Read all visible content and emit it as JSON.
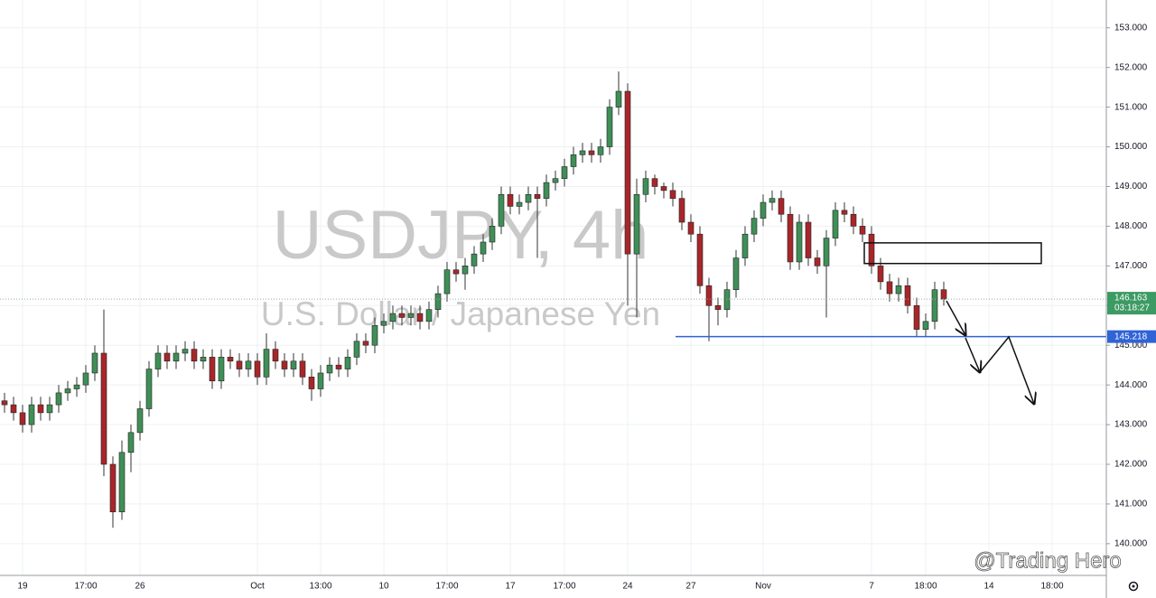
{
  "chart_data": {
    "type": "candlestick",
    "title": "USDJPY, 4h",
    "subtitle": "U.S. Dollar / Japanese Yen",
    "credit": "@Trading Hero",
    "countdown": "03:18:27",
    "level": 145.218,
    "zone": [
      147.06,
      147.58
    ],
    "up_color": "#3f8f57",
    "down_color": "#a8262a",
    "level_color": "#2f63d6",
    "last_color": "#3c9a63",
    "grid": true,
    "categories": [
      null,
      null,
      "19",
      null,
      null,
      null,
      null,
      null,
      null,
      "17:00",
      null,
      null,
      null,
      null,
      null,
      "26",
      null,
      null,
      null,
      null,
      null,
      null,
      null,
      null,
      null,
      null,
      null,
      null,
      "Oct",
      null,
      null,
      null,
      null,
      null,
      null,
      "13:00",
      null,
      null,
      null,
      null,
      null,
      null,
      "10",
      null,
      null,
      null,
      null,
      null,
      null,
      "17:00",
      null,
      null,
      null,
      null,
      null,
      null,
      "17",
      null,
      null,
      null,
      null,
      null,
      "17:00",
      null,
      null,
      null,
      null,
      null,
      null,
      "24",
      null,
      null,
      null,
      null,
      null,
      null,
      "27",
      null,
      null,
      null,
      null,
      null,
      null,
      null,
      "Nov",
      null,
      null,
      null,
      null,
      null,
      null,
      null,
      null,
      null,
      null,
      null,
      "7",
      null,
      null,
      null,
      null,
      null,
      "18:00",
      null,
      null,
      null,
      null,
      null,
      null,
      "14",
      null,
      null,
      null,
      null,
      null,
      null,
      "18:00"
    ],
    "open": [
      143.6,
      143.5,
      143.3,
      143.0,
      143.5,
      143.3,
      143.5,
      143.8,
      143.9,
      144.0,
      144.3,
      144.8,
      142.0,
      140.8,
      142.3,
      142.8,
      143.4,
      144.4,
      144.8,
      144.6,
      144.8,
      144.9,
      144.6,
      144.7,
      144.1,
      144.7,
      144.6,
      144.4,
      144.6,
      144.2,
      144.9,
      144.6,
      144.4,
      144.6,
      144.2,
      143.9,
      144.3,
      144.5,
      144.4,
      144.7,
      145.1,
      145.0,
      145.5,
      145.6,
      145.8,
      145.7,
      145.8,
      145.6,
      145.9,
      146.3,
      146.9,
      146.8,
      147.0,
      147.3,
      147.6,
      148.0,
      148.8,
      148.5,
      148.6,
      148.8,
      148.7,
      149.1,
      149.2,
      149.5,
      149.8,
      149.9,
      149.8,
      150.0,
      151.0,
      151.4,
      147.3,
      148.8,
      149.2,
      149.0,
      148.9,
      148.7,
      148.1,
      147.8,
      146.5,
      146.0,
      145.9,
      146.4,
      147.2,
      147.8,
      148.2,
      148.6,
      148.7,
      148.3,
      147.1,
      148.1,
      147.2,
      147.0,
      147.7,
      148.4,
      148.3,
      148.0,
      147.8,
      147.0,
      146.6,
      146.3,
      146.5,
      146.0,
      145.4,
      145.6,
      146.4,
      null,
      null,
      null,
      null,
      null,
      null,
      null,
      null,
      null,
      null,
      null,
      null
    ],
    "high": [
      143.8,
      143.7,
      143.5,
      143.7,
      143.7,
      143.7,
      144.0,
      144.1,
      144.2,
      144.5,
      145.0,
      145.9,
      142.2,
      142.6,
      143.0,
      143.6,
      144.6,
      145.0,
      145.0,
      145.0,
      145.1,
      145.1,
      144.9,
      144.9,
      144.9,
      144.9,
      144.8,
      144.8,
      144.8,
      145.3,
      145.1,
      144.8,
      144.8,
      144.8,
      144.4,
      144.5,
      144.7,
      144.7,
      144.9,
      145.3,
      145.3,
      145.7,
      145.8,
      146.0,
      146.0,
      146.0,
      146.0,
      146.1,
      146.5,
      147.1,
      147.1,
      147.2,
      147.5,
      147.8,
      148.2,
      149.0,
      149.0,
      148.8,
      149.0,
      149.0,
      149.3,
      149.4,
      149.7,
      150.0,
      150.1,
      150.1,
      150.2,
      151.2,
      151.9,
      151.6,
      149.2,
      149.4,
      149.3,
      149.1,
      149.1,
      148.9,
      148.3,
      148.0,
      146.7,
      146.2,
      146.6,
      147.4,
      148.0,
      148.4,
      148.8,
      148.9,
      148.9,
      148.5,
      148.3,
      148.3,
      147.4,
      147.9,
      148.6,
      148.6,
      148.5,
      148.2,
      148.0,
      147.2,
      146.8,
      146.7,
      146.7,
      146.2,
      145.8,
      146.6,
      146.6,
      null,
      null,
      null,
      null,
      null,
      null,
      null,
      null,
      null,
      null,
      null,
      null
    ],
    "low": [
      143.3,
      143.1,
      142.8,
      142.8,
      143.1,
      143.1,
      143.3,
      143.6,
      143.7,
      143.8,
      144.1,
      141.7,
      140.4,
      140.6,
      141.8,
      142.6,
      143.2,
      144.2,
      144.4,
      144.4,
      144.6,
      144.4,
      144.4,
      143.9,
      143.9,
      144.4,
      144.2,
      144.2,
      144.0,
      144.0,
      144.4,
      144.2,
      144.2,
      144.0,
      143.6,
      143.7,
      144.1,
      144.2,
      144.2,
      144.5,
      144.8,
      144.8,
      145.3,
      145.4,
      145.5,
      145.5,
      145.4,
      145.4,
      145.7,
      146.1,
      146.6,
      146.4,
      146.8,
      147.1,
      147.4,
      147.8,
      148.3,
      148.3,
      148.4,
      147.2,
      148.5,
      148.9,
      149.0,
      149.3,
      149.6,
      149.6,
      149.6,
      149.8,
      150.8,
      146.0,
      145.7,
      148.6,
      148.8,
      148.7,
      148.5,
      147.9,
      147.6,
      146.3,
      145.1,
      145.5,
      145.7,
      146.2,
      147.0,
      147.6,
      148.0,
      148.4,
      148.1,
      146.9,
      146.9,
      147.0,
      146.8,
      145.7,
      147.5,
      148.1,
      147.8,
      147.6,
      146.8,
      146.4,
      146.1,
      146.1,
      145.8,
      145.2,
      145.2,
      145.4,
      146.0,
      null,
      null,
      null,
      null,
      null,
      null,
      null,
      null,
      null,
      null,
      null,
      null
    ],
    "close": [
      143.5,
      143.3,
      143.0,
      143.5,
      143.3,
      143.5,
      143.8,
      143.9,
      144.0,
      144.3,
      144.8,
      142.0,
      140.8,
      142.3,
      142.8,
      143.4,
      144.4,
      144.8,
      144.6,
      144.8,
      144.9,
      144.6,
      144.7,
      144.1,
      144.7,
      144.6,
      144.4,
      144.6,
      144.2,
      144.9,
      144.6,
      144.4,
      144.6,
      144.2,
      143.9,
      144.3,
      144.5,
      144.4,
      144.7,
      145.1,
      145.0,
      145.5,
      145.6,
      145.8,
      145.7,
      145.8,
      145.6,
      145.9,
      146.3,
      146.9,
      146.8,
      147.0,
      147.3,
      147.6,
      148.0,
      148.8,
      148.5,
      148.6,
      148.8,
      148.7,
      149.1,
      149.2,
      149.5,
      149.8,
      149.9,
      149.8,
      150.0,
      151.0,
      151.4,
      147.3,
      148.8,
      149.2,
      149.0,
      148.9,
      148.7,
      148.1,
      147.8,
      146.5,
      146.0,
      145.9,
      146.4,
      147.2,
      147.8,
      148.2,
      148.6,
      148.7,
      148.3,
      147.1,
      148.1,
      147.2,
      147.0,
      147.7,
      148.4,
      148.3,
      148.0,
      147.8,
      147.0,
      146.6,
      146.3,
      146.5,
      146.0,
      145.4,
      145.6,
      146.4,
      146.163,
      null,
      null,
      null,
      null,
      null,
      null,
      null,
      null,
      null,
      null,
      null,
      null
    ],
    "ylim": [
      139.2,
      153.7
    ],
    "yticks": [
      {
        "value": 140,
        "label": "140.000"
      },
      {
        "value": 141,
        "label": "141.000"
      },
      {
        "value": 142,
        "label": "142.000"
      },
      {
        "value": 143,
        "label": "143.000"
      },
      {
        "value": 144,
        "label": "144.000"
      },
      {
        "value": 145,
        "label": "145.000"
      },
      {
        "value": 146,
        "label": "146.000"
      },
      {
        "value": 147,
        "label": "147.000"
      },
      {
        "value": 148,
        "label": "148.000"
      },
      {
        "value": 149,
        "label": "149.000"
      },
      {
        "value": 150,
        "label": "150.000"
      },
      {
        "value": 151,
        "label": "151.000"
      },
      {
        "value": 152,
        "label": "152.000"
      },
      {
        "value": 153,
        "label": "153.000"
      }
    ]
  }
}
